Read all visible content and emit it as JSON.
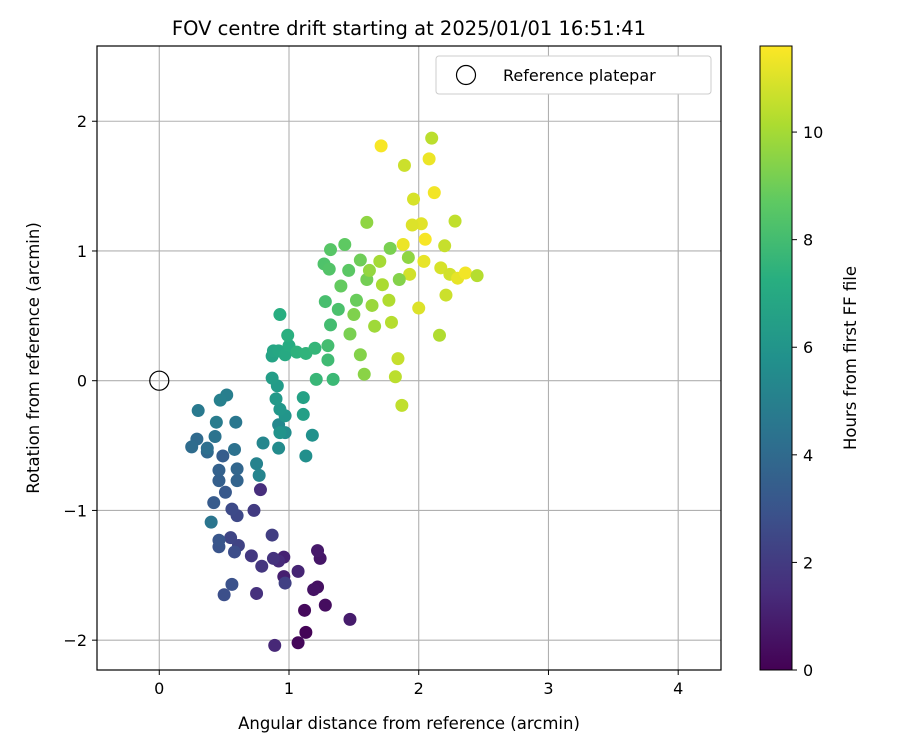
{
  "chart_data": {
    "type": "scatter",
    "title": "FOV centre drift starting at 2025/01/01 16:51:41",
    "xlabel": "Angular distance from reference (arcmin)",
    "ylabel": "Rotation from reference (arcmin)",
    "xlim": [
      -0.48,
      4.33
    ],
    "ylim": [
      -2.23,
      2.58
    ],
    "xticks": [
      0,
      1,
      2,
      3,
      4
    ],
    "yticks": [
      -2,
      -1,
      0,
      1,
      2
    ],
    "grid": true,
    "legend": {
      "placement": "top-right",
      "entries": [
        "Reference platepar"
      ]
    },
    "reference_point": {
      "label": "Reference platepar",
      "x": 0,
      "y": 0,
      "marker": "open-circle"
    },
    "colorbar": {
      "label": "Hours from first FF file",
      "min": 0,
      "max": 11.6,
      "ticks": [
        0,
        2,
        4,
        6,
        8,
        10
      ],
      "colormap": "viridis"
    },
    "series": [
      {
        "points": [
          {
            "x": 1.13,
            "y": -1.94,
            "c": 0.1
          },
          {
            "x": 1.07,
            "y": -2.02,
            "c": 0.2
          },
          {
            "x": 1.12,
            "y": -1.77,
            "c": 0.3
          },
          {
            "x": 1.28,
            "y": -1.73,
            "c": 0.4
          },
          {
            "x": 1.22,
            "y": -1.59,
            "c": 0.5
          },
          {
            "x": 1.19,
            "y": -1.61,
            "c": 0.6
          },
          {
            "x": 1.24,
            "y": -1.37,
            "c": 0.7
          },
          {
            "x": 1.22,
            "y": -1.31,
            "c": 0.8
          },
          {
            "x": 1.47,
            "y": -1.84,
            "c": 0.9
          },
          {
            "x": 0.96,
            "y": -1.51,
            "c": 1.0
          },
          {
            "x": 0.96,
            "y": -1.36,
            "c": 1.1
          },
          {
            "x": 1.07,
            "y": -1.47,
            "c": 1.2
          },
          {
            "x": 0.89,
            "y": -2.04,
            "c": 1.3
          },
          {
            "x": 0.92,
            "y": -1.39,
            "c": 1.4
          },
          {
            "x": 0.78,
            "y": -0.84,
            "c": 1.5
          },
          {
            "x": 0.75,
            "y": -1.64,
            "c": 1.6
          },
          {
            "x": 0.88,
            "y": -1.37,
            "c": 1.7
          },
          {
            "x": 0.79,
            "y": -1.43,
            "c": 1.8
          },
          {
            "x": 0.71,
            "y": -1.35,
            "c": 1.9
          },
          {
            "x": 0.73,
            "y": -1.0,
            "c": 2.0
          },
          {
            "x": 0.87,
            "y": -1.19,
            "c": 2.1
          },
          {
            "x": 0.97,
            "y": -1.56,
            "c": 2.2
          },
          {
            "x": 0.61,
            "y": -1.27,
            "c": 2.3
          },
          {
            "x": 0.55,
            "y": -1.21,
            "c": 2.4
          },
          {
            "x": 0.6,
            "y": -1.04,
            "c": 2.5
          },
          {
            "x": 0.56,
            "y": -0.99,
            "c": 2.6
          },
          {
            "x": 0.58,
            "y": -1.32,
            "c": 2.7
          },
          {
            "x": 0.5,
            "y": -1.65,
            "c": 2.8
          },
          {
            "x": 0.56,
            "y": -1.57,
            "c": 2.9
          },
          {
            "x": 0.46,
            "y": -1.28,
            "c": 3.0
          },
          {
            "x": 0.46,
            "y": -1.23,
            "c": 3.1
          },
          {
            "x": 0.51,
            "y": -0.86,
            "c": 3.2
          },
          {
            "x": 0.42,
            "y": -0.94,
            "c": 3.3
          },
          {
            "x": 0.49,
            "y": -0.58,
            "c": 3.4
          },
          {
            "x": 0.46,
            "y": -0.77,
            "c": 3.5
          },
          {
            "x": 0.46,
            "y": -0.69,
            "c": 3.6
          },
          {
            "x": 0.6,
            "y": -0.77,
            "c": 3.7
          },
          {
            "x": 0.6,
            "y": -0.68,
            "c": 3.8
          },
          {
            "x": 0.37,
            "y": -0.55,
            "c": 3.9
          },
          {
            "x": 0.29,
            "y": -0.45,
            "c": 4.0
          },
          {
            "x": 0.25,
            "y": -0.51,
            "c": 4.1
          },
          {
            "x": 0.37,
            "y": -0.52,
            "c": 4.2
          },
          {
            "x": 0.58,
            "y": -0.53,
            "c": 4.3
          },
          {
            "x": 0.43,
            "y": -0.43,
            "c": 4.4
          },
          {
            "x": 0.4,
            "y": -1.09,
            "c": 4.5
          },
          {
            "x": 0.59,
            "y": -0.32,
            "c": 4.6
          },
          {
            "x": 0.3,
            "y": -0.23,
            "c": 4.7
          },
          {
            "x": 0.44,
            "y": -0.32,
            "c": 4.8
          },
          {
            "x": 0.52,
            "y": -0.11,
            "c": 4.9
          },
          {
            "x": 0.47,
            "y": -0.15,
            "c": 5.0
          },
          {
            "x": 0.75,
            "y": -0.64,
            "c": 5.1
          },
          {
            "x": 0.77,
            "y": -0.73,
            "c": 5.2
          },
          {
            "x": 0.8,
            "y": -0.48,
            "c": 5.3
          },
          {
            "x": 0.92,
            "y": -0.34,
            "c": 5.4
          },
          {
            "x": 0.92,
            "y": -0.52,
            "c": 5.5
          },
          {
            "x": 0.97,
            "y": -0.4,
            "c": 5.6
          },
          {
            "x": 1.13,
            "y": -0.58,
            "c": 5.7
          },
          {
            "x": 1.18,
            "y": -0.42,
            "c": 5.8
          },
          {
            "x": 0.93,
            "y": -0.4,
            "c": 5.9
          },
          {
            "x": 0.97,
            "y": -0.27,
            "c": 6.0
          },
          {
            "x": 0.93,
            "y": -0.22,
            "c": 6.1
          },
          {
            "x": 0.9,
            "y": -0.14,
            "c": 6.2
          },
          {
            "x": 0.91,
            "y": -0.04,
            "c": 6.3
          },
          {
            "x": 0.87,
            "y": 0.02,
            "c": 6.4
          },
          {
            "x": 1.11,
            "y": -0.26,
            "c": 6.5
          },
          {
            "x": 1.11,
            "y": -0.13,
            "c": 6.6
          },
          {
            "x": 0.87,
            "y": 0.19,
            "c": 6.7
          },
          {
            "x": 0.88,
            "y": 0.23,
            "c": 6.8
          },
          {
            "x": 0.92,
            "y": 0.23,
            "c": 6.9
          },
          {
            "x": 0.97,
            "y": 0.2,
            "c": 7.0
          },
          {
            "x": 1.0,
            "y": 0.27,
            "c": 7.1
          },
          {
            "x": 0.93,
            "y": 0.51,
            "c": 7.2
          },
          {
            "x": 0.99,
            "y": 0.35,
            "c": 7.3
          },
          {
            "x": 1.06,
            "y": 0.22,
            "c": 7.4
          },
          {
            "x": 1.13,
            "y": 0.21,
            "c": 7.5
          },
          {
            "x": 1.2,
            "y": 0.25,
            "c": 7.6
          },
          {
            "x": 1.21,
            "y": 0.01,
            "c": 7.7
          },
          {
            "x": 1.34,
            "y": 0.01,
            "c": 7.8
          },
          {
            "x": 1.3,
            "y": 0.16,
            "c": 7.9
          },
          {
            "x": 1.3,
            "y": 0.27,
            "c": 8.0
          },
          {
            "x": 1.32,
            "y": 0.43,
            "c": 8.0
          },
          {
            "x": 1.28,
            "y": 0.61,
            "c": 8.1
          },
          {
            "x": 1.38,
            "y": 0.55,
            "c": 8.2
          },
          {
            "x": 1.27,
            "y": 0.9,
            "c": 8.3
          },
          {
            "x": 1.31,
            "y": 0.86,
            "c": 8.4
          },
          {
            "x": 1.32,
            "y": 1.01,
            "c": 8.5
          },
          {
            "x": 1.46,
            "y": 0.85,
            "c": 8.6
          },
          {
            "x": 1.43,
            "y": 1.05,
            "c": 8.7
          },
          {
            "x": 1.4,
            "y": 0.73,
            "c": 8.8
          },
          {
            "x": 1.52,
            "y": 0.62,
            "c": 8.9
          },
          {
            "x": 1.55,
            "y": 0.93,
            "c": 9.0
          },
          {
            "x": 1.6,
            "y": 0.78,
            "c": 9.1
          },
          {
            "x": 1.47,
            "y": 0.36,
            "c": 9.2
          },
          {
            "x": 1.5,
            "y": 0.51,
            "c": 9.3
          },
          {
            "x": 1.55,
            "y": 0.2,
            "c": 9.4
          },
          {
            "x": 1.58,
            "y": 0.05,
            "c": 9.5
          },
          {
            "x": 1.6,
            "y": 1.22,
            "c": 9.6
          },
          {
            "x": 1.62,
            "y": 0.85,
            "c": 9.7
          },
          {
            "x": 1.64,
            "y": 0.58,
            "c": 9.8
          },
          {
            "x": 1.66,
            "y": 0.42,
            "c": 9.9
          },
          {
            "x": 1.7,
            "y": 0.92,
            "c": 10.0
          },
          {
            "x": 1.72,
            "y": 0.74,
            "c": 10.1
          },
          {
            "x": 1.77,
            "y": 0.62,
            "c": 10.2
          },
          {
            "x": 1.79,
            "y": 0.45,
            "c": 10.3
          },
          {
            "x": 1.82,
            "y": 0.03,
            "c": 10.4
          },
          {
            "x": 1.87,
            "y": -0.19,
            "c": 10.5
          },
          {
            "x": 1.84,
            "y": 0.17,
            "c": 10.6
          },
          {
            "x": 1.89,
            "y": 1.66,
            "c": 10.7
          },
          {
            "x": 1.93,
            "y": 0.82,
            "c": 10.8
          },
          {
            "x": 1.96,
            "y": 1.4,
            "c": 10.9
          },
          {
            "x": 2.0,
            "y": 0.56,
            "c": 11.0
          },
          {
            "x": 2.02,
            "y": 1.21,
            "c": 11.1
          },
          {
            "x": 2.04,
            "y": 0.92,
            "c": 11.2
          },
          {
            "x": 2.08,
            "y": 1.71,
            "c": 11.3
          },
          {
            "x": 2.12,
            "y": 1.45,
            "c": 11.4
          },
          {
            "x": 1.71,
            "y": 1.81,
            "c": 11.5
          },
          {
            "x": 2.17,
            "y": 0.87,
            "c": 10.9
          },
          {
            "x": 2.2,
            "y": 1.04,
            "c": 10.6
          },
          {
            "x": 2.24,
            "y": 0.82,
            "c": 10.8
          },
          {
            "x": 2.3,
            "y": 0.79,
            "c": 11.2
          },
          {
            "x": 2.36,
            "y": 0.83,
            "c": 11.4
          },
          {
            "x": 2.45,
            "y": 0.81,
            "c": 10.3
          },
          {
            "x": 2.28,
            "y": 1.23,
            "c": 10.5
          },
          {
            "x": 2.21,
            "y": 0.66,
            "c": 10.7
          },
          {
            "x": 2.1,
            "y": 1.87,
            "c": 10.4
          },
          {
            "x": 2.16,
            "y": 0.35,
            "c": 10.2
          },
          {
            "x": 1.95,
            "y": 1.2,
            "c": 11.0
          },
          {
            "x": 1.88,
            "y": 1.05,
            "c": 11.3
          },
          {
            "x": 2.05,
            "y": 1.09,
            "c": 11.5
          },
          {
            "x": 1.92,
            "y": 0.95,
            "c": 9.6
          },
          {
            "x": 1.85,
            "y": 0.78,
            "c": 9.4
          },
          {
            "x": 1.78,
            "y": 1.02,
            "c": 9.2
          }
        ]
      }
    ]
  }
}
